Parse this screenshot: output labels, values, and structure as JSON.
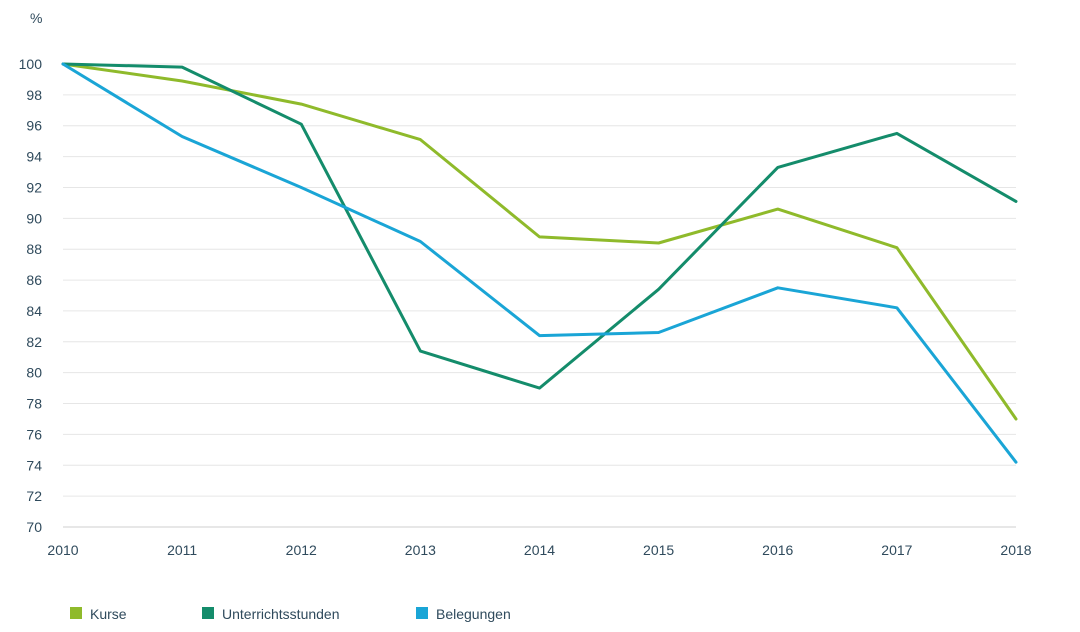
{
  "chart_data": {
    "type": "line",
    "ylabel": "%",
    "x": [
      "2010",
      "2011",
      "2012",
      "2013",
      "2014",
      "2015",
      "2016",
      "2017",
      "2018"
    ],
    "ylim": [
      70,
      100
    ],
    "yticks": [
      70,
      72,
      74,
      76,
      78,
      80,
      82,
      84,
      86,
      88,
      90,
      92,
      94,
      96,
      98,
      100
    ],
    "grid": "horizontal",
    "legend_position": "bottom-left",
    "series": [
      {
        "name": "Kurse",
        "color": "#8fba2b",
        "values": [
          100,
          98.9,
          97.4,
          95.1,
          88.8,
          88.4,
          90.6,
          88.1,
          77.0
        ]
      },
      {
        "name": "Unterrichtsstunden",
        "color": "#148c6b",
        "values": [
          100,
          99.8,
          96.1,
          81.4,
          79.0,
          85.4,
          93.3,
          95.5,
          91.1
        ]
      },
      {
        "name": "Belegungen",
        "color": "#1aa5d6",
        "values": [
          100,
          95.3,
          92.0,
          88.5,
          82.4,
          82.6,
          85.5,
          84.2,
          74.2
        ]
      }
    ]
  }
}
